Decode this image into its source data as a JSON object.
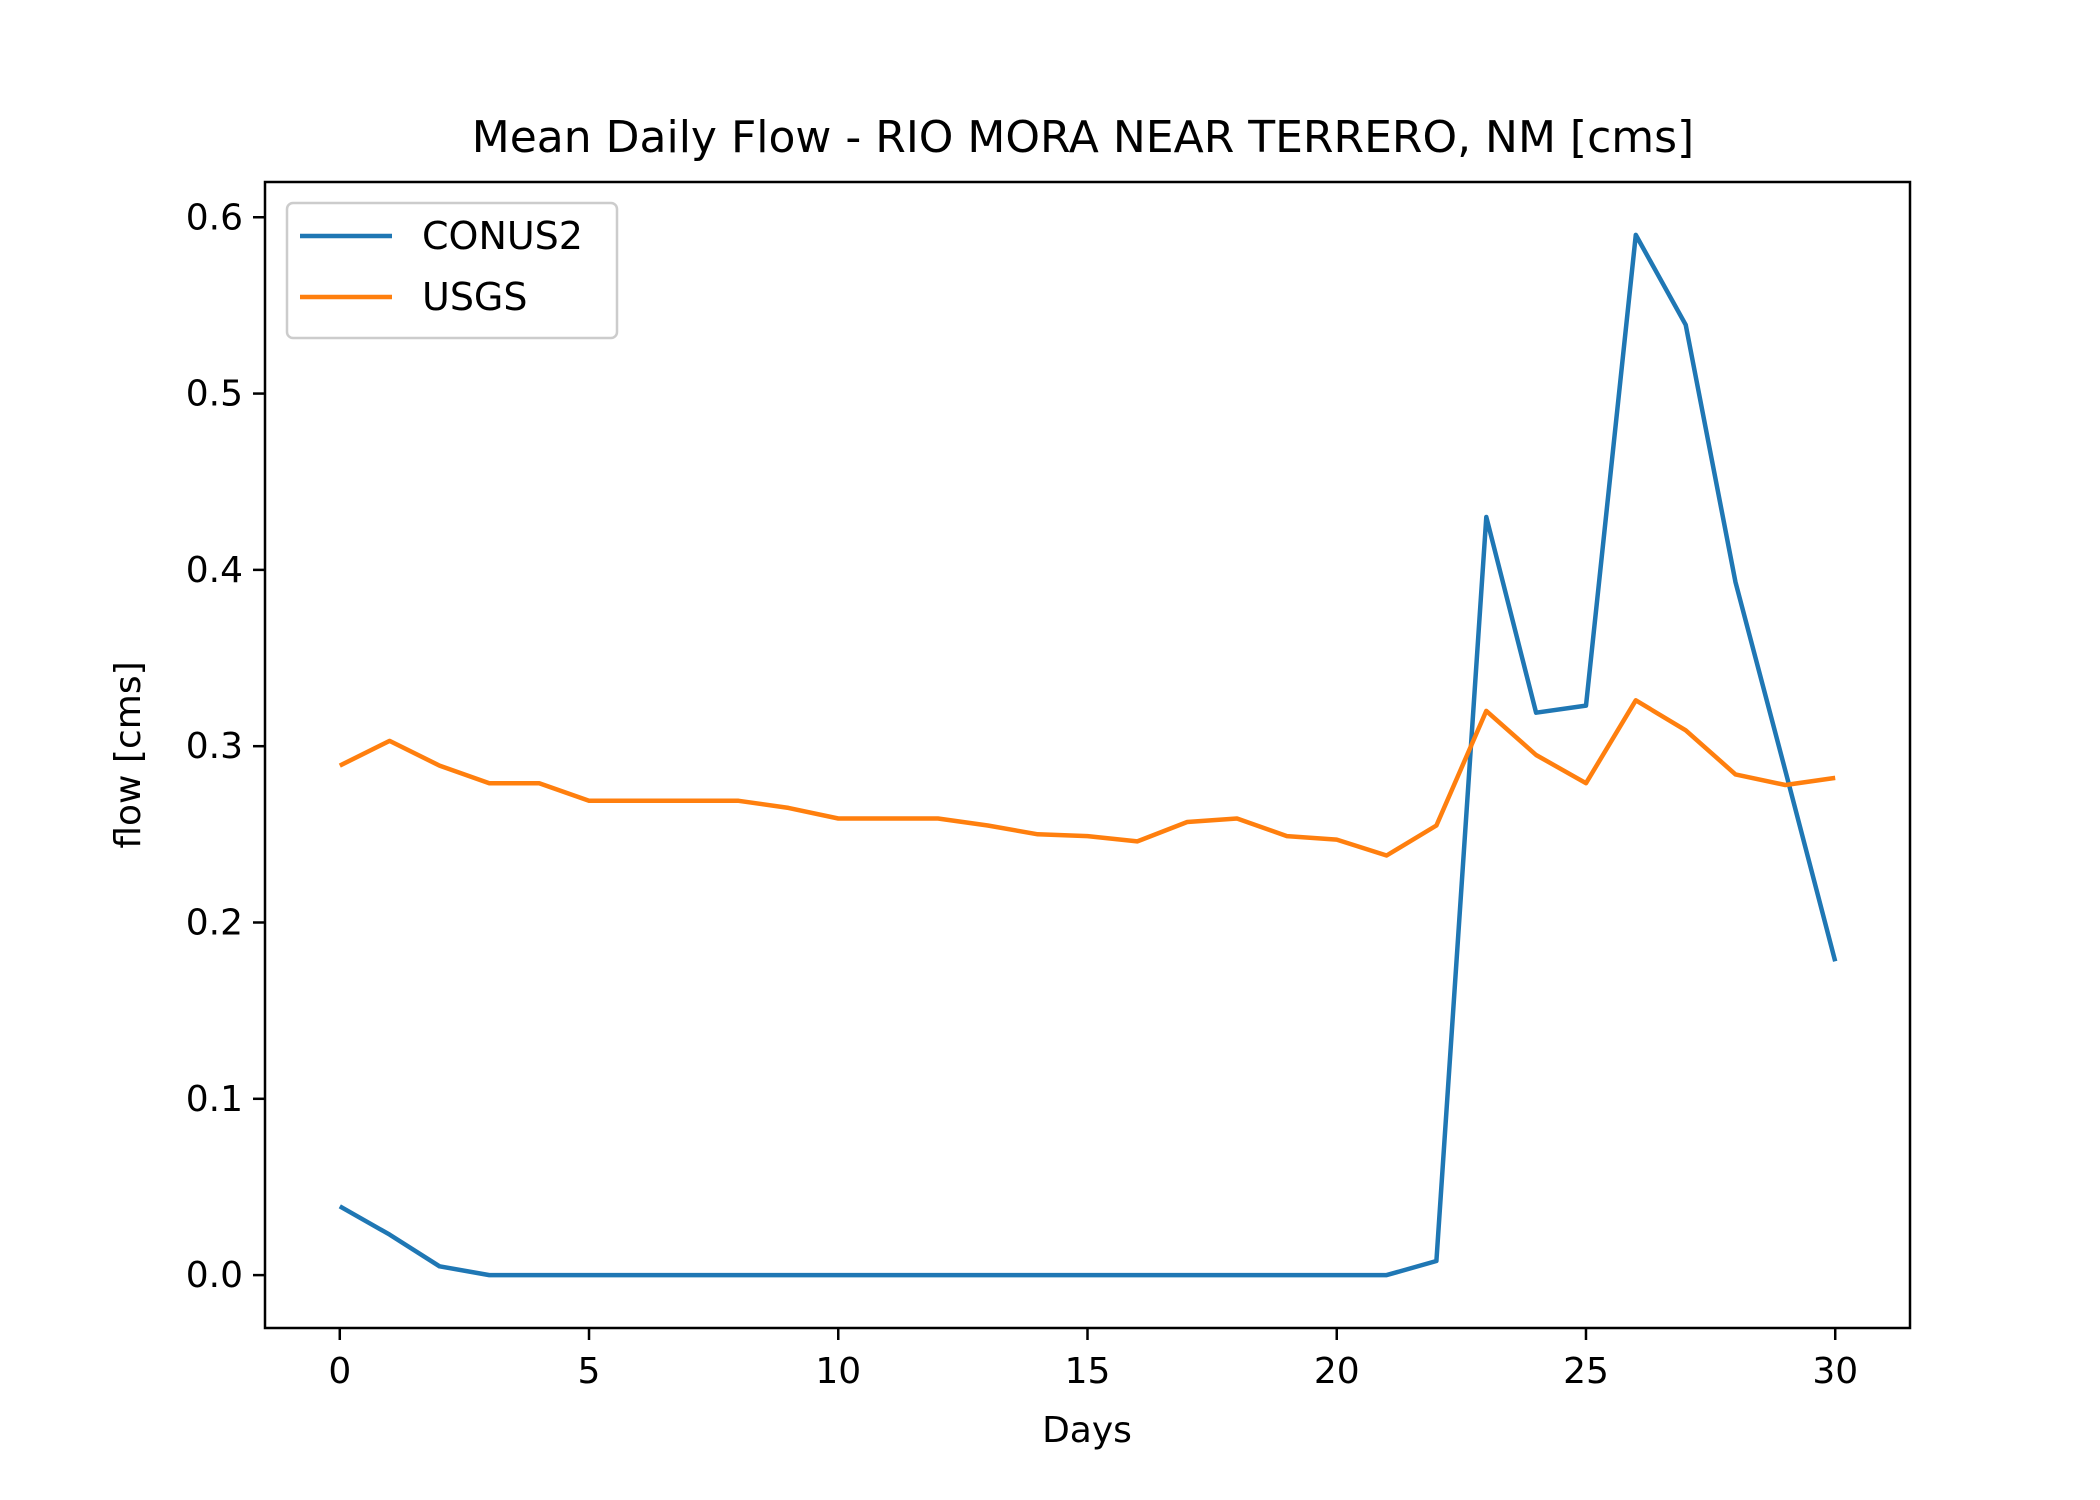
{
  "chart_data": {
    "type": "line",
    "title": "Mean Daily Flow - RIO MORA NEAR TERRERO, NM [cms]",
    "xlabel": "Days",
    "ylabel": "flow [cms]",
    "xlim": [
      -1.5,
      31.5
    ],
    "ylim": [
      -0.03,
      0.62
    ],
    "xticks": [
      0,
      5,
      10,
      15,
      20,
      25,
      30
    ],
    "yticks": [
      0.0,
      0.1,
      0.2,
      0.3,
      0.4,
      0.5,
      0.6
    ],
    "xtick_labels": [
      "0",
      "5",
      "10",
      "15",
      "20",
      "25",
      "30"
    ],
    "ytick_labels": [
      "0.0",
      "0.1",
      "0.2",
      "0.3",
      "0.4",
      "0.5",
      "0.6"
    ],
    "grid": false,
    "legend_position": "top-left",
    "x": [
      0,
      1,
      2,
      3,
      4,
      5,
      6,
      7,
      8,
      9,
      10,
      11,
      12,
      13,
      14,
      15,
      16,
      17,
      18,
      19,
      20,
      21,
      22,
      23,
      24,
      25,
      26,
      27,
      28,
      29,
      30
    ],
    "series": [
      {
        "name": "CONUS2",
        "color": "#1f77b4",
        "values": [
          0.039,
          0.023,
          0.005,
          0.0,
          0.0,
          0.0,
          0.0,
          0.0,
          0.0,
          0.0,
          0.0,
          0.0,
          0.0,
          0.0,
          0.0,
          0.0,
          0.0,
          0.0,
          0.0,
          0.0,
          0.0,
          0.0,
          0.008,
          0.43,
          0.319,
          0.323,
          0.59,
          0.539,
          0.393,
          0.286,
          0.178
        ]
      },
      {
        "name": "USGS",
        "color": "#ff7f0e",
        "values": [
          0.289,
          0.303,
          0.289,
          0.279,
          0.279,
          0.269,
          0.269,
          0.269,
          0.269,
          0.265,
          0.259,
          0.259,
          0.259,
          0.255,
          0.25,
          0.249,
          0.246,
          0.257,
          0.259,
          0.249,
          0.247,
          0.238,
          0.255,
          0.32,
          0.295,
          0.279,
          0.326,
          0.309,
          0.284,
          0.278,
          0.282
        ]
      }
    ]
  }
}
